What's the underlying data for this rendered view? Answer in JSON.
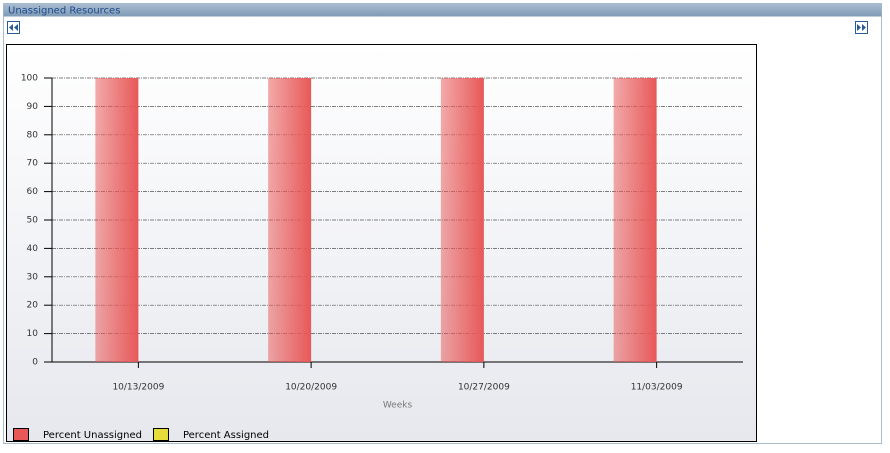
{
  "header": {
    "title": "Unassigned Resources"
  },
  "chart_data": {
    "type": "bar",
    "x_label": "Weeks",
    "categories": [
      "10/13/2009",
      "10/20/2009",
      "10/27/2009",
      "11/03/2009"
    ],
    "series": [
      {
        "name": "Percent Unassigned",
        "color": "#e85858",
        "values": [
          100,
          100,
          100,
          100
        ]
      },
      {
        "name": "Percent Assigned",
        "color": "#e6dc3c",
        "values": [
          0,
          0,
          0,
          0
        ]
      }
    ],
    "ylim": [
      0,
      100
    ],
    "yticks": [
      0,
      10,
      20,
      30,
      40,
      50,
      60,
      70,
      80,
      90,
      100
    ],
    "grid": true,
    "legend": "bottom"
  }
}
